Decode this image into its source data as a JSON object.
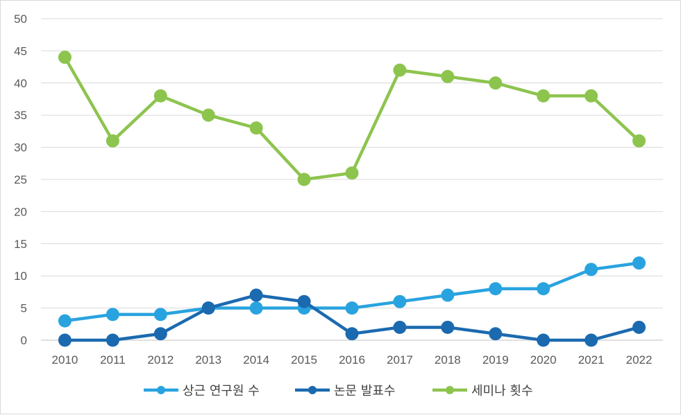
{
  "chart_data": {
    "type": "line",
    "x": [
      "2010",
      "2011",
      "2012",
      "2013",
      "2014",
      "2015",
      "2016",
      "2017",
      "2018",
      "2019",
      "2020",
      "2021",
      "2022"
    ],
    "ylim": [
      0,
      50
    ],
    "yticks": [
      "0",
      "5",
      "10",
      "15",
      "20",
      "25",
      "30",
      "35",
      "40",
      "45",
      "50"
    ],
    "grid": true,
    "legend_position": "bottom",
    "series": [
      {
        "name": "상근 연구원 수",
        "color": "#29A3DF",
        "values": [
          3,
          4,
          4,
          5,
          5,
          5,
          5,
          6,
          7,
          8,
          8,
          11,
          12
        ]
      },
      {
        "name": "논문 발표수",
        "color": "#1B6AB0",
        "values": [
          0,
          0,
          1,
          5,
          7,
          6,
          1,
          2,
          2,
          1,
          0,
          0,
          2
        ]
      },
      {
        "name": "세미나 횟수",
        "color": "#8DC44E",
        "values": [
          44,
          31,
          38,
          35,
          33,
          25,
          26,
          42,
          41,
          40,
          38,
          38,
          31
        ]
      }
    ]
  }
}
